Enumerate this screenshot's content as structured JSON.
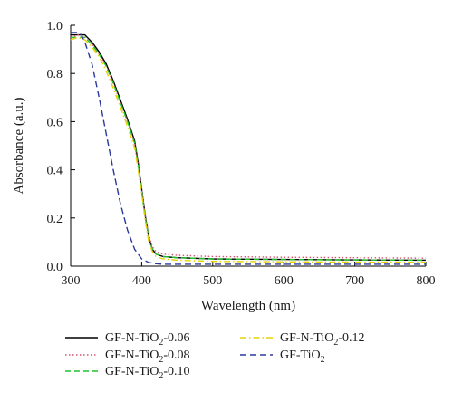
{
  "chart_data": {
    "type": "line",
    "xlabel": "Wavelength (nm)",
    "ylabel": "Absorbance (a.u.)",
    "xlim": [
      300,
      800
    ],
    "ylim": [
      0,
      1.0
    ],
    "xticks": [
      "300",
      "400",
      "500",
      "600",
      "700",
      "800"
    ],
    "yticks": [
      "0.0",
      "0.2",
      "0.4",
      "0.6",
      "0.8",
      "1.0"
    ],
    "grid": false,
    "legend_position": "bottom",
    "series": [
      {
        "name": "GF-N-TiO2-0.06",
        "name_prefix": "GF-N-TiO",
        "name_sub": "2",
        "name_suffix": "-0.06",
        "color": "#000000",
        "dash": "solid",
        "x": [
          300,
          310,
          320,
          330,
          340,
          350,
          360,
          370,
          380,
          390,
          395,
          400,
          405,
          410,
          415,
          420,
          430,
          450,
          500,
          600,
          700,
          800
        ],
        "y": [
          0.96,
          0.96,
          0.96,
          0.93,
          0.89,
          0.84,
          0.77,
          0.69,
          0.61,
          0.52,
          0.43,
          0.32,
          0.21,
          0.12,
          0.07,
          0.05,
          0.04,
          0.035,
          0.03,
          0.028,
          0.026,
          0.025
        ]
      },
      {
        "name": "GF-N-TiO2-0.08",
        "name_prefix": "GF-N-TiO",
        "name_sub": "2",
        "name_suffix": "-0.08",
        "color": "#d9536f",
        "dash": "dotted",
        "x": [
          300,
          310,
          320,
          330,
          340,
          350,
          360,
          370,
          380,
          390,
          395,
          400,
          405,
          410,
          415,
          420,
          430,
          450,
          500,
          600,
          700,
          800
        ],
        "y": [
          0.95,
          0.96,
          0.95,
          0.92,
          0.88,
          0.83,
          0.76,
          0.68,
          0.6,
          0.51,
          0.42,
          0.32,
          0.21,
          0.13,
          0.08,
          0.06,
          0.05,
          0.045,
          0.04,
          0.037,
          0.035,
          0.033
        ]
      },
      {
        "name": "GF-N-TiO2-0.10",
        "name_prefix": "GF-N-TiO",
        "name_sub": "2",
        "name_suffix": "-0.10",
        "color": "#22c22e",
        "dash": "dashed",
        "x": [
          300,
          310,
          320,
          330,
          340,
          350,
          360,
          370,
          380,
          390,
          395,
          400,
          405,
          410,
          415,
          420,
          430,
          450,
          500,
          600,
          700,
          800
        ],
        "y": [
          0.95,
          0.95,
          0.95,
          0.92,
          0.88,
          0.83,
          0.76,
          0.68,
          0.6,
          0.51,
          0.42,
          0.31,
          0.2,
          0.12,
          0.07,
          0.05,
          0.04,
          0.035,
          0.03,
          0.028,
          0.026,
          0.025
        ]
      },
      {
        "name": "GF-N-TiO2-0.12",
        "name_prefix": "GF-N-TiO",
        "name_sub": "2",
        "name_suffix": "-0.12",
        "color": "#e6d400",
        "dash": "dashdot",
        "x": [
          300,
          310,
          320,
          330,
          340,
          350,
          360,
          370,
          380,
          390,
          395,
          400,
          405,
          410,
          415,
          420,
          430,
          450,
          500,
          600,
          700,
          800
        ],
        "y": [
          0.94,
          0.95,
          0.94,
          0.91,
          0.87,
          0.81,
          0.74,
          0.66,
          0.58,
          0.49,
          0.4,
          0.3,
          0.19,
          0.1,
          0.06,
          0.04,
          0.03,
          0.025,
          0.02,
          0.018,
          0.017,
          0.016
        ]
      },
      {
        "name": "GF-TiO2",
        "name_prefix": "GF-TiO",
        "name_sub": "2",
        "name_suffix": "",
        "color": "#2b3a9a",
        "dash": "longdash",
        "x": [
          300,
          310,
          315,
          320,
          330,
          340,
          350,
          360,
          370,
          380,
          390,
          400,
          410,
          420,
          430,
          450,
          500,
          600,
          700,
          800
        ],
        "y": [
          0.97,
          0.97,
          0.96,
          0.93,
          0.84,
          0.7,
          0.55,
          0.4,
          0.26,
          0.15,
          0.07,
          0.03,
          0.015,
          0.01,
          0.008,
          0.008,
          0.008,
          0.008,
          0.008,
          0.008
        ]
      }
    ]
  }
}
